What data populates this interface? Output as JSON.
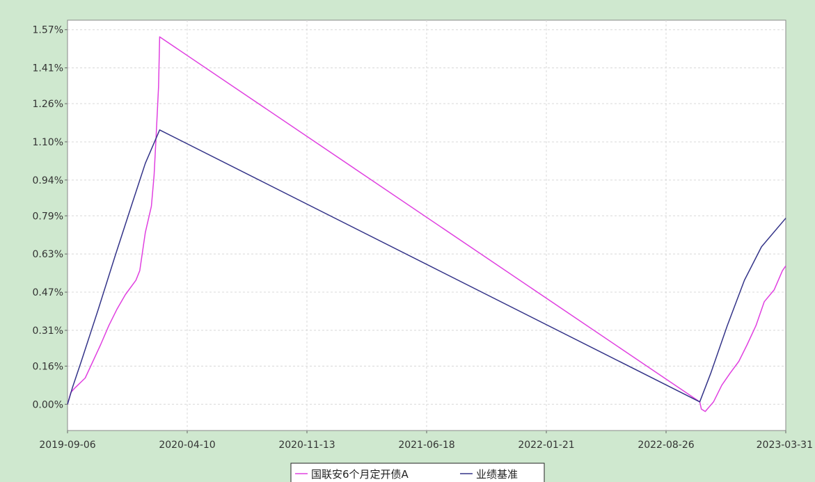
{
  "chart_data": {
    "type": "line",
    "title": "",
    "xlabel": "",
    "ylabel": "",
    "x_ticks": [
      "2019-09-06",
      "2020-04-10",
      "2020-11-13",
      "2021-06-18",
      "2022-01-21",
      "2022-08-26",
      "2023-03-31"
    ],
    "y_ticks": [
      "0.00%",
      "0.16%",
      "0.31%",
      "0.47%",
      "0.63%",
      "0.79%",
      "0.94%",
      "1.10%",
      "1.26%",
      "1.41%",
      "1.57%"
    ],
    "xlim": [
      "2019-09-06",
      "2023-03-31"
    ],
    "ylim": [
      -0.11,
      1.61
    ],
    "y_unit": "%",
    "grid": true,
    "legend_placement": "bottom-center",
    "series": [
      {
        "name": "国联安6个月定开债A",
        "color": "#e040e0",
        "points": [
          [
            "2019-09-06",
            0.0
          ],
          [
            "2019-09-12",
            0.05
          ],
          [
            "2019-09-20",
            0.07
          ],
          [
            "2019-10-08",
            0.11
          ],
          [
            "2019-10-20",
            0.17
          ],
          [
            "2019-11-05",
            0.25
          ],
          [
            "2019-11-20",
            0.33
          ],
          [
            "2019-12-05",
            0.4
          ],
          [
            "2019-12-20",
            0.46
          ],
          [
            "2020-01-08",
            0.52
          ],
          [
            "2020-01-15",
            0.56
          ],
          [
            "2020-01-25",
            0.72
          ],
          [
            "2020-02-05",
            0.83
          ],
          [
            "2020-02-10",
            0.96
          ],
          [
            "2020-02-14",
            1.14
          ],
          [
            "2020-02-18",
            1.33
          ],
          [
            "2020-02-20",
            1.54
          ],
          [
            "2022-10-26",
            0.01
          ],
          [
            "2022-10-29",
            -0.02
          ],
          [
            "2022-11-05",
            -0.03
          ],
          [
            "2022-11-20",
            0.01
          ],
          [
            "2022-12-05",
            0.08
          ],
          [
            "2022-12-20",
            0.13
          ],
          [
            "2023-01-05",
            0.18
          ],
          [
            "2023-01-20",
            0.25
          ],
          [
            "2023-02-05",
            0.33
          ],
          [
            "2023-02-20",
            0.43
          ],
          [
            "2023-03-10",
            0.48
          ],
          [
            "2023-03-25",
            0.56
          ],
          [
            "2023-03-31",
            0.58
          ]
        ]
      },
      {
        "name": "业绩基准",
        "color": "#333388",
        "points": [
          [
            "2019-09-06",
            0.0
          ],
          [
            "2019-09-15",
            0.07
          ],
          [
            "2019-10-01",
            0.18
          ],
          [
            "2019-11-01",
            0.4
          ],
          [
            "2019-12-01",
            0.62
          ],
          [
            "2020-01-01",
            0.84
          ],
          [
            "2020-01-25",
            1.01
          ],
          [
            "2020-02-20",
            1.15
          ],
          [
            "2022-10-26",
            0.01
          ],
          [
            "2022-11-15",
            0.13
          ],
          [
            "2022-12-15",
            0.33
          ],
          [
            "2023-01-15",
            0.52
          ],
          [
            "2023-02-15",
            0.66
          ],
          [
            "2023-03-31",
            0.78
          ]
        ]
      }
    ]
  }
}
